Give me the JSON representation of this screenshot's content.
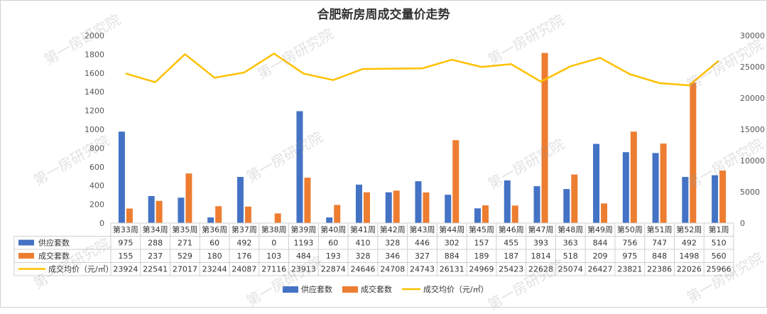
{
  "chart_data": {
    "type": "bar",
    "title": "合肥新房周成交量价走势",
    "categories": [
      "第33周",
      "第34周",
      "第35周",
      "第36周",
      "第37周",
      "第38周",
      "第39周",
      "第40周",
      "第41周",
      "第42周",
      "第43周",
      "第44周",
      "第45周",
      "第46周",
      "第47周",
      "第48周",
      "第49周",
      "第50周",
      "第51周",
      "第52周",
      "第1周"
    ],
    "series": [
      {
        "name": "供应套数",
        "kind": "bar",
        "axis": "left",
        "color": "#4472C4",
        "values": [
          975,
          288,
          271,
          60,
          492,
          0,
          1193,
          60,
          410,
          328,
          446,
          302,
          157,
          455,
          393,
          363,
          844,
          756,
          747,
          492,
          510
        ]
      },
      {
        "name": "成交套数",
        "kind": "bar",
        "axis": "left",
        "color": "#ED7D31",
        "values": [
          155,
          237,
          529,
          180,
          176,
          103,
          484,
          193,
          328,
          346,
          327,
          884,
          189,
          187,
          1814,
          518,
          209,
          975,
          848,
          1498,
          560
        ]
      },
      {
        "name": "成交均价（元/㎡）",
        "kind": "line",
        "axis": "right",
        "color": "#FFC000",
        "values": [
          23924,
          22541,
          27017,
          23244,
          24087,
          27116,
          23913,
          22874,
          24646,
          24708,
          24743,
          26131,
          24969,
          25423,
          22628,
          25074,
          26427,
          23821,
          22386,
          22026,
          25966
        ]
      }
    ],
    "table_labels": [
      "供应套数",
      "成交套数",
      "成交均价（元/㎡）"
    ],
    "left_axis": {
      "min": 0,
      "max": 2000,
      "ticks": [
        "0",
        "200",
        "400",
        "600",
        "800",
        "1000",
        "1200",
        "1400",
        "1600",
        "1800",
        "2000"
      ]
    },
    "right_axis": {
      "min": 0,
      "max": 30000,
      "ticks": [
        "0",
        "5000",
        "10000",
        "15000",
        "20000",
        "25000",
        "30000"
      ]
    },
    "legend": [
      "供应套数",
      "成交套数",
      "成交均价（元/㎡）"
    ],
    "legend_position": "bottom"
  },
  "watermark": "第一房研究院"
}
